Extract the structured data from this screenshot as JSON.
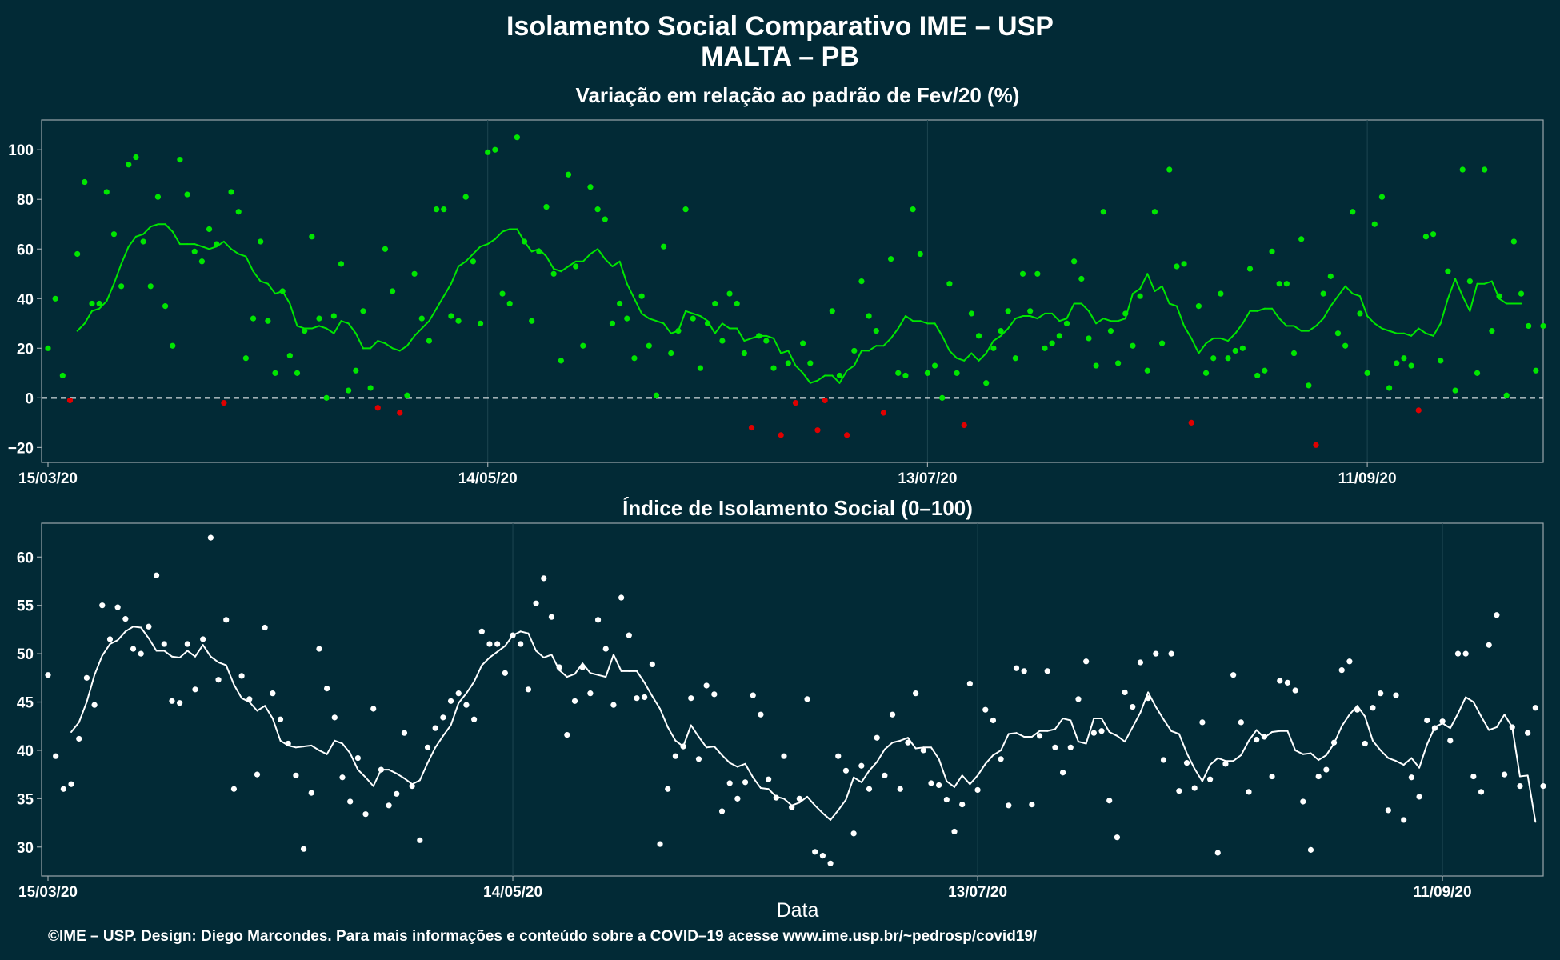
{
  "title": "Isolamento Social Comparativo IME – USP",
  "subtitle": "MALTA – PB",
  "xlabel": "Data",
  "caption": "©IME – USP. Design: Diego Marcondes. Para mais informações e conteúdo sobre a COVID–19 acesse www.ime.usp.br/~pedrosp/covid19/",
  "colors": {
    "background": "#022a36",
    "positive": "#00e600",
    "negative": "#e00000",
    "index": "#ffffff",
    "axis": "#9aa6ab",
    "zero_line": "#ffffff"
  },
  "chart_data": [
    {
      "type": "scatter+line",
      "title": "Variação em relação ao padrão de Fev/20 (%)",
      "x_start": "15/03/20",
      "x_ticks": [
        "15/03/20",
        "14/05/20",
        "13/07/20",
        "11/09/20"
      ],
      "x_tick_day_offsets": [
        0,
        60,
        120,
        180
      ],
      "ylim": [
        -26,
        112
      ],
      "y_ticks": [
        -20,
        0,
        20,
        40,
        60,
        80,
        100
      ],
      "y_tick_labels": [
        "−20",
        "0",
        "20",
        "40",
        "60",
        "80",
        "100"
      ],
      "reference_line": 0,
      "points": [
        20,
        40,
        9,
        -1,
        58,
        87,
        38,
        38,
        83,
        66,
        45,
        94,
        97,
        63,
        45,
        81,
        37,
        21,
        96,
        82,
        59,
        55,
        68,
        62,
        -2,
        83,
        75,
        16,
        32,
        63,
        31,
        10,
        43,
        17,
        10,
        27,
        65,
        32,
        0,
        33,
        54,
        3,
        11,
        35,
        4,
        -4,
        60,
        43,
        -6,
        1,
        50,
        32,
        23,
        76,
        76,
        33,
        31,
        81,
        55,
        30,
        99,
        100,
        42,
        38,
        105,
        63,
        31,
        59,
        77,
        50,
        15,
        90,
        53,
        21,
        85,
        76,
        72,
        30,
        38,
        32,
        16,
        41,
        21,
        1,
        61,
        18,
        27,
        76,
        32,
        12,
        30,
        38,
        23,
        42,
        38,
        18,
        -12,
        25,
        23,
        12,
        -15,
        14,
        -2,
        22,
        14,
        -13,
        -1,
        35,
        9,
        -15,
        19,
        47,
        33,
        27,
        -6,
        56,
        10,
        9,
        76,
        58,
        10,
        13,
        0,
        46,
        10,
        -11,
        34,
        25,
        6,
        20,
        27,
        35,
        16,
        50,
        35,
        50,
        20,
        22,
        25,
        30,
        55,
        48,
        24,
        13,
        75,
        27,
        14,
        34,
        21,
        41,
        11,
        75,
        22,
        92,
        53,
        54,
        -10,
        37,
        10,
        16,
        42,
        16,
        19,
        20,
        52,
        9,
        11,
        59,
        46,
        46,
        18,
        64,
        5,
        -19,
        42,
        49,
        26,
        21,
        75,
        34,
        10,
        70,
        81,
        4,
        14,
        16,
        13,
        -5,
        65,
        66,
        15,
        51,
        3,
        92,
        47,
        10,
        92,
        27,
        41,
        1,
        63,
        42,
        29,
        11,
        29
      ],
      "smooth": [
        null,
        null,
        null,
        null,
        27,
        30,
        35,
        36,
        39,
        46,
        54,
        61,
        65,
        66,
        69,
        70,
        70,
        67,
        62,
        62,
        62,
        61,
        60,
        61,
        63,
        60,
        58,
        57,
        51,
        47,
        46,
        42,
        43,
        38,
        29,
        28,
        28,
        29,
        28,
        26,
        31,
        30,
        26,
        20,
        20,
        23,
        22,
        20,
        19,
        21,
        25,
        28,
        31,
        36,
        41,
        46,
        53,
        55,
        58,
        61,
        62,
        64,
        67,
        68,
        68,
        63,
        59,
        60,
        57,
        52,
        51,
        53,
        55,
        55,
        58,
        60,
        56,
        53,
        55,
        46,
        40,
        34,
        32,
        31,
        30,
        26,
        27,
        35,
        34,
        33,
        31,
        26,
        30,
        28,
        28,
        23,
        24,
        25,
        25,
        24,
        18,
        19,
        13,
        10,
        6,
        7,
        9,
        9,
        6,
        11,
        13,
        19,
        19,
        21,
        21,
        24,
        28,
        33,
        31,
        31,
        30,
        30,
        25,
        19,
        16,
        15,
        18,
        15,
        18,
        23,
        25,
        28,
        32,
        33,
        33,
        32,
        34,
        34,
        31,
        32,
        38,
        38,
        35,
        30,
        32,
        31,
        31,
        32,
        42,
        44,
        50,
        43,
        45,
        38,
        37,
        29,
        24,
        18,
        22,
        24,
        24,
        23,
        26,
        30,
        35,
        35,
        36,
        36,
        32,
        29,
        29,
        27,
        27,
        29,
        32,
        37,
        41,
        45,
        42,
        41,
        33,
        30,
        28,
        27,
        26,
        26,
        25,
        28,
        26,
        25,
        30,
        40,
        48,
        41,
        35,
        46,
        46,
        47,
        40,
        38,
        38,
        38
      ]
    },
    {
      "type": "scatter+line",
      "title": "Índice de Isolamento Social (0–100)",
      "x_start": "15/03/20",
      "x_ticks": [
        "15/03/20",
        "14/05/20",
        "13/07/20",
        "11/09/20"
      ],
      "x_tick_day_offsets": [
        0,
        60,
        120,
        180
      ],
      "ylim": [
        27,
        63.5
      ],
      "y_ticks": [
        30,
        35,
        40,
        45,
        50,
        55,
        60
      ],
      "y_tick_labels": [
        "30",
        "35",
        "40",
        "45",
        "50",
        "55",
        "60"
      ],
      "points": [
        47.8,
        39.4,
        36.0,
        36.5,
        41.2,
        47.5,
        44.7,
        55.0,
        51.5,
        54.8,
        53.6,
        50.5,
        50.0,
        52.8,
        58.1,
        51.0,
        45.1,
        44.9,
        51.0,
        46.3,
        51.5,
        62.0,
        47.3,
        53.5,
        36.0,
        47.7,
        45.3,
        37.5,
        52.7,
        45.9,
        43.2,
        40.7,
        37.4,
        29.8,
        35.6,
        50.5,
        46.4,
        43.4,
        37.2,
        34.7,
        39.2,
        33.4,
        44.3,
        38.0,
        34.3,
        35.5,
        41.8,
        36.3,
        30.7,
        40.3,
        42.3,
        43.4,
        45.1,
        45.9,
        44.7,
        43.2,
        52.3,
        51.0,
        51.0,
        48.0,
        51.9,
        51.0,
        46.3,
        55.2,
        57.8,
        53.8,
        48.6,
        41.6,
        45.1,
        48.6,
        45.9,
        53.5,
        50.5,
        44.7,
        55.8,
        51.9,
        45.4,
        45.5,
        48.9,
        30.3,
        36.0,
        39.4,
        40.4,
        45.4,
        39.1,
        46.7,
        45.8,
        33.7,
        36.6,
        35.0,
        36.7,
        45.7,
        43.7,
        37.0,
        35.1,
        39.4,
        34.1,
        35.0,
        45.3,
        29.5,
        29.1,
        28.3,
        39.4,
        37.9,
        31.4,
        38.4,
        36.0,
        41.3,
        37.4,
        43.7,
        36.0,
        40.8,
        45.9,
        40.0,
        36.6,
        36.4,
        34.9,
        31.6,
        34.4,
        46.9,
        35.9,
        44.2,
        43.1,
        39.1,
        34.3,
        48.5,
        48.2,
        34.4,
        41.5,
        48.2,
        40.3,
        37.7,
        40.3,
        45.3,
        49.2,
        41.8,
        42.0,
        34.8,
        31.0,
        46.0,
        44.5,
        49.1,
        45.4,
        50.0,
        39.0,
        50.0,
        35.8,
        38.7,
        36.1,
        42.9,
        37.0,
        29.4,
        38.6,
        47.8,
        42.9,
        35.7,
        41.1,
        41.4,
        37.3,
        47.2,
        47.0,
        46.2,
        34.7,
        29.7,
        37.3,
        38.0,
        40.8,
        48.3,
        49.2,
        44.2,
        40.7,
        44.4,
        45.9,
        33.8,
        45.7,
        32.8,
        37.2,
        35.2,
        43.1,
        42.3,
        43.0,
        41.0,
        50.0,
        50.0,
        37.3,
        35.7,
        50.9,
        54.0,
        37.5,
        42.4,
        36.3,
        41.8,
        44.4,
        36.3
      ],
      "smooth": [
        null,
        null,
        null,
        41.9,
        42.9,
        45.0,
        47.8,
        49.8,
        51.0,
        51.4,
        52.3,
        52.8,
        52.7,
        51.6,
        50.3,
        50.3,
        49.7,
        49.6,
        50.3,
        49.7,
        50.9,
        49.7,
        49.1,
        48.8,
        46.8,
        45.4,
        45.0,
        44.1,
        44.6,
        43.3,
        41.0,
        40.5,
        40.3,
        40.4,
        40.5,
        40.0,
        39.6,
        41.0,
        40.7,
        39.7,
        38.0,
        37.2,
        36.3,
        38.0,
        38.0,
        37.6,
        37.1,
        36.5,
        36.9,
        38.7,
        40.3,
        41.5,
        42.6,
        44.9,
        45.9,
        47.1,
        48.8,
        49.6,
        50.2,
        50.8,
        51.9,
        52.3,
        52.1,
        50.3,
        49.6,
        49.9,
        48.3,
        47.6,
        47.9,
        49.0,
        48.0,
        47.8,
        47.6,
        49.9,
        48.2,
        48.2,
        48.2,
        47.0,
        45.6,
        44.3,
        42.4,
        41.0,
        40.4,
        42.6,
        41.4,
        40.3,
        40.4,
        39.5,
        38.7,
        38.3,
        38.6,
        37.2,
        36.1,
        36.0,
        35.2,
        35.0,
        34.3,
        34.6,
        35.2,
        34.3,
        33.5,
        32.8,
        33.8,
        34.9,
        37.2,
        36.7,
        37.9,
        38.8,
        40.1,
        40.8,
        41.0,
        41.3,
        40.2,
        40.3,
        40.3,
        39.1,
        36.8,
        36.2,
        37.4,
        36.5,
        37.4,
        38.6,
        39.5,
        40.0,
        41.7,
        41.8,
        41.4,
        41.4,
        42.0,
        42.0,
        42.2,
        43.3,
        43.1,
        40.9,
        40.7,
        43.3,
        43.3,
        41.9,
        41.5,
        40.9,
        42.4,
        43.9,
        46.0,
        44.5,
        43.2,
        42.0,
        41.7,
        39.7,
        38.1,
        36.8,
        38.5,
        39.2,
        38.9,
        38.9,
        39.5,
        41.0,
        42.1,
        41.3,
        41.9,
        42.0,
        42.0,
        40.0,
        39.6,
        39.7,
        39.0,
        39.5,
        40.7,
        42.5,
        43.7,
        44.6,
        43.5,
        41.0,
        40.0,
        39.2,
        38.9,
        38.5,
        39.2,
        38.2,
        40.6,
        42.4,
        42.8,
        42.3,
        43.8,
        45.5,
        45.0,
        43.5,
        42.1,
        42.4,
        43.7,
        42.4,
        37.3,
        37.4,
        32.6
      ]
    }
  ]
}
